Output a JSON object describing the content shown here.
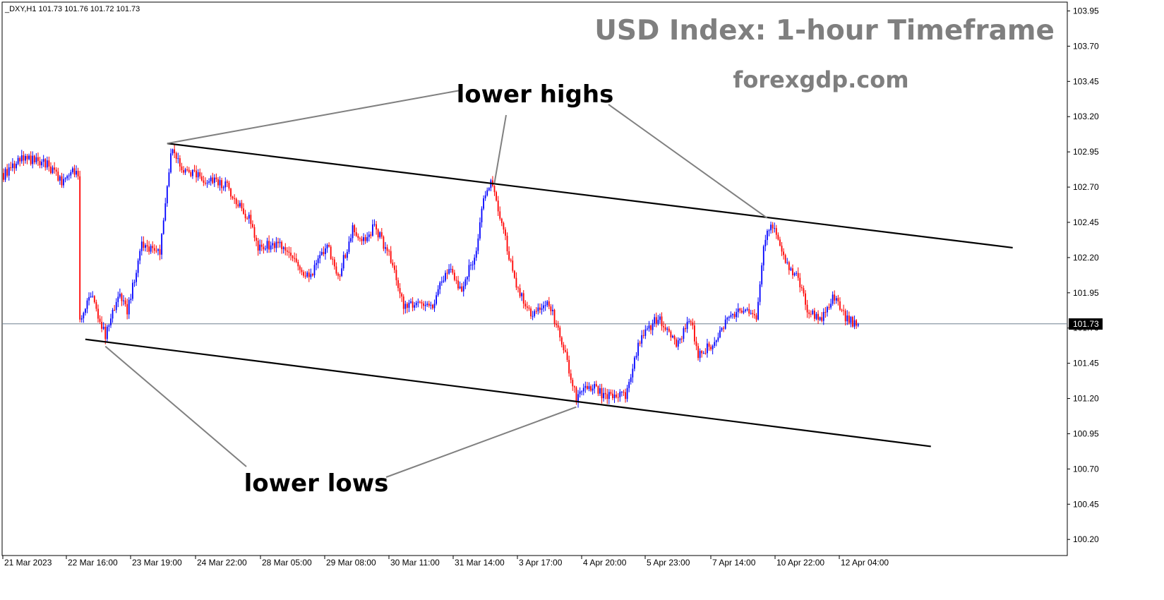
{
  "chart_data": {
    "type": "candlestick",
    "title": "USD Index: 1-hour Timeframe",
    "subtitle": "forexgdp.com",
    "symbol_header": "_DXY,H1  101.73 101.76 101.72 101.73",
    "current_price": 101.73,
    "current_price_label": "101.73",
    "ylim": [
      100.09,
      104.02
    ],
    "y_ticks": [
      {
        "value": 103.95,
        "label": "103.95"
      },
      {
        "value": 103.7,
        "label": "103.70"
      },
      {
        "value": 103.45,
        "label": "103.45"
      },
      {
        "value": 103.2,
        "label": "103.20"
      },
      {
        "value": 102.95,
        "label": "102.95"
      },
      {
        "value": 102.7,
        "label": "102.70"
      },
      {
        "value": 102.45,
        "label": "102.45"
      },
      {
        "value": 102.2,
        "label": "102.20"
      },
      {
        "value": 101.95,
        "label": "101.95"
      },
      {
        "value": 101.7,
        "label": "101.70"
      },
      {
        "value": 101.45,
        "label": "101.45"
      },
      {
        "value": 101.2,
        "label": "101.20"
      },
      {
        "value": 100.95,
        "label": "100.95"
      },
      {
        "value": 100.7,
        "label": "100.70"
      },
      {
        "value": 100.45,
        "label": "100.45"
      },
      {
        "value": 100.2,
        "label": "100.20"
      }
    ],
    "x_ticks": [
      "21 Mar 2023",
      "22 Mar 16:00",
      "23 Mar 19:00",
      "24 Mar 22:00",
      "28 Mar 05:00",
      "29 Mar 08:00",
      "30 Mar 11:00",
      "31 Mar 14:00",
      "3 Apr 17:00",
      "4 Apr 20:00",
      "5 Apr 23:00",
      "7 Apr 14:00",
      "10 Apr 22:00",
      "12 Apr 04:00"
    ],
    "price_path": [
      {
        "bar": 0,
        "price": 102.78
      },
      {
        "bar": 10,
        "price": 102.92
      },
      {
        "bar": 25,
        "price": 102.85
      },
      {
        "bar": 32,
        "price": 102.74
      },
      {
        "bar": 37,
        "price": 102.82
      },
      {
        "bar": 41,
        "price": 102.78
      },
      {
        "bar": 42,
        "price": 101.76
      },
      {
        "bar": 48,
        "price": 101.95
      },
      {
        "bar": 56,
        "price": 101.64
      },
      {
        "bar": 63,
        "price": 101.95
      },
      {
        "bar": 68,
        "price": 101.82
      },
      {
        "bar": 76,
        "price": 102.3
      },
      {
        "bar": 86,
        "price": 102.22
      },
      {
        "bar": 92,
        "price": 102.95
      },
      {
        "bar": 100,
        "price": 102.82
      },
      {
        "bar": 112,
        "price": 102.75
      },
      {
        "bar": 122,
        "price": 102.72
      },
      {
        "bar": 136,
        "price": 102.45
      },
      {
        "bar": 140,
        "price": 102.28
      },
      {
        "bar": 152,
        "price": 102.3
      },
      {
        "bar": 160,
        "price": 102.18
      },
      {
        "bar": 168,
        "price": 102.06
      },
      {
        "bar": 178,
        "price": 102.3
      },
      {
        "bar": 184,
        "price": 102.06
      },
      {
        "bar": 192,
        "price": 102.4
      },
      {
        "bar": 198,
        "price": 102.32
      },
      {
        "bar": 204,
        "price": 102.42
      },
      {
        "bar": 212,
        "price": 102.22
      },
      {
        "bar": 220,
        "price": 101.85
      },
      {
        "bar": 228,
        "price": 101.87
      },
      {
        "bar": 236,
        "price": 101.86
      },
      {
        "bar": 244,
        "price": 102.12
      },
      {
        "bar": 252,
        "price": 101.98
      },
      {
        "bar": 260,
        "price": 102.25
      },
      {
        "bar": 263,
        "price": 102.55
      },
      {
        "bar": 268,
        "price": 102.74
      },
      {
        "bar": 274,
        "price": 102.45
      },
      {
        "bar": 282,
        "price": 101.98
      },
      {
        "bar": 290,
        "price": 101.8
      },
      {
        "bar": 300,
        "price": 101.88
      },
      {
        "bar": 308,
        "price": 101.55
      },
      {
        "bar": 315,
        "price": 101.2
      },
      {
        "bar": 322,
        "price": 101.3
      },
      {
        "bar": 330,
        "price": 101.22
      },
      {
        "bar": 342,
        "price": 101.22
      },
      {
        "bar": 350,
        "price": 101.62
      },
      {
        "bar": 360,
        "price": 101.78
      },
      {
        "bar": 370,
        "price": 101.6
      },
      {
        "bar": 378,
        "price": 101.75
      },
      {
        "bar": 382,
        "price": 101.5
      },
      {
        "bar": 392,
        "price": 101.62
      },
      {
        "bar": 398,
        "price": 101.78
      },
      {
        "bar": 408,
        "price": 101.85
      },
      {
        "bar": 414,
        "price": 101.74
      },
      {
        "bar": 418,
        "price": 102.28
      },
      {
        "bar": 422,
        "price": 102.46
      },
      {
        "bar": 430,
        "price": 102.18
      },
      {
        "bar": 438,
        "price": 102.02
      },
      {
        "bar": 442,
        "price": 101.82
      },
      {
        "bar": 450,
        "price": 101.78
      },
      {
        "bar": 456,
        "price": 101.92
      },
      {
        "bar": 464,
        "price": 101.76
      },
      {
        "bar": 470,
        "price": 101.73
      }
    ],
    "channel_lines": [
      {
        "name": "upper-trendline",
        "from_bar": 90,
        "from_price": 103.01,
        "to_bar": 555,
        "to_price": 102.27
      },
      {
        "name": "lower-trendline",
        "from_bar": 45,
        "from_price": 101.62,
        "to_bar": 510,
        "to_price": 100.86
      }
    ],
    "annotations": [
      {
        "name": "lower-highs",
        "text": "lower highs",
        "pointers": [
          {
            "bar": 90,
            "price": 103.01
          },
          {
            "bar": 270,
            "price": 102.73
          },
          {
            "bar": 420,
            "price": 102.48
          }
        ]
      },
      {
        "name": "lower-lows",
        "text": "lower lows",
        "pointers": [
          {
            "bar": 56,
            "price": 101.57
          },
          {
            "bar": 315,
            "price": 101.14
          }
        ]
      }
    ],
    "colors": {
      "bull": "#0000ff",
      "bear": "#ff0000",
      "trendline": "#000000",
      "pointer": "#808080",
      "current_price_line": "#708090",
      "title": "#7f7f7f"
    }
  }
}
